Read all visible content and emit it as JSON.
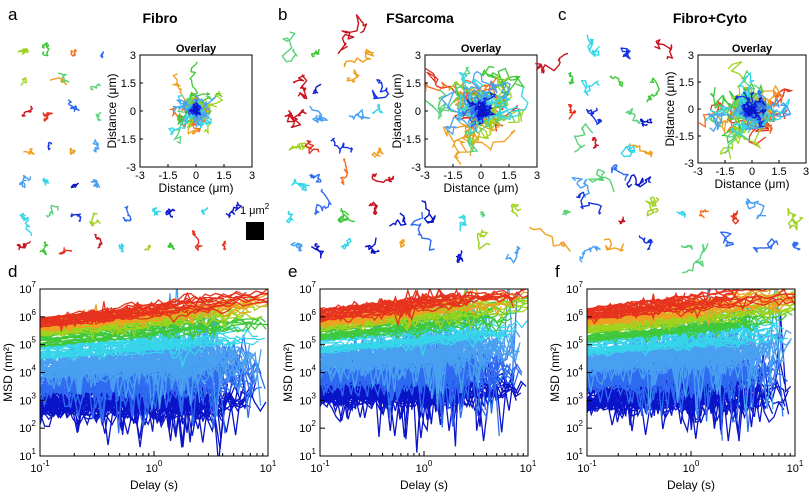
{
  "scale_bar": {
    "label_main": "1 μm",
    "label_exp": "2"
  },
  "palette": [
    "#0a14c8",
    "#1432e6",
    "#2f6bf0",
    "#4aa0f0",
    "#36d6ea",
    "#5ad27a",
    "#3fc83a",
    "#a0d21e",
    "#f0a020",
    "#f07020",
    "#e6321e",
    "#c8141e"
  ],
  "panels": [
    {
      "letter": "a",
      "title": "Fibro",
      "overlay": {
        "title": "Overlay",
        "xlabel": "Distance (μm)",
        "ylabel": "Distance (μm)",
        "xticks": [
          "-3",
          "-1.5",
          "0",
          "1.5",
          "3"
        ],
        "yticks": [
          "3",
          "1.5",
          "0",
          "-1.5",
          "-3"
        ],
        "range": [
          -3,
          3
        ],
        "spread": 1.3
      },
      "tracks_spread": 1.0
    },
    {
      "letter": "b",
      "title": "FSarcoma",
      "overlay": {
        "title": "Overlay",
        "xlabel": "Distance (μm)",
        "ylabel": "Distance (μm)",
        "xticks": [
          "-3",
          "-1.5",
          "0",
          "1.5",
          "3"
        ],
        "yticks": [
          "3",
          "1.5",
          "0",
          "-1.5",
          "-3"
        ],
        "range": [
          -3,
          3
        ],
        "spread": 2.6
      },
      "tracks_spread": 1.8
    },
    {
      "letter": "c",
      "title": "Fibro+Cyto",
      "overlay": {
        "title": "Overlay",
        "xlabel": "Distance (μm)",
        "ylabel": "Distance (μm)",
        "xticks": [
          "-3",
          "-1.5",
          "0",
          "1.5",
          "3"
        ],
        "yticks": [
          "3",
          "1.5",
          "0",
          "-1.5",
          "-3"
        ],
        "range": [
          -3,
          3
        ],
        "spread": 2.5
      },
      "tracks_spread": 1.7
    }
  ],
  "chart_data": [
    {
      "type": "line",
      "letter": "d",
      "xlabel": "Delay (s)",
      "ylabel": "MSD (nm²)",
      "xscale": "log",
      "yscale": "log",
      "xlim": [
        0.1,
        10
      ],
      "ylim": [
        10,
        10000000
      ],
      "xticks": [
        {
          "base": "10",
          "exp": "-1"
        },
        {
          "base": "10",
          "exp": "0"
        },
        {
          "base": "10",
          "exp": "1"
        }
      ],
      "yticks": [
        {
          "base": "10",
          "exp": "1"
        },
        {
          "base": "10",
          "exp": "2"
        },
        {
          "base": "10",
          "exp": "3"
        },
        {
          "base": "10",
          "exp": "4"
        },
        {
          "base": "10",
          "exp": "5"
        },
        {
          "base": "10",
          "exp": "6"
        },
        {
          "base": "10",
          "exp": "7"
        }
      ],
      "series_groups": [
        {
          "color": "#0a14c8",
          "msd_at_0.1s": [
            300,
            2000
          ],
          "slope": [
            0.05,
            0.2
          ]
        },
        {
          "color": "#2f6bf0",
          "msd_at_0.1s": [
            2000,
            10000
          ],
          "slope": [
            0.1,
            0.3
          ]
        },
        {
          "color": "#4aa0f0",
          "msd_at_0.1s": [
            8000,
            30000
          ],
          "slope": [
            0.1,
            0.35
          ]
        },
        {
          "color": "#36d6ea",
          "msd_at_0.1s": [
            30000,
            100000
          ],
          "slope": [
            0.2,
            0.4
          ]
        },
        {
          "color": "#3fc83a",
          "msd_at_0.1s": [
            80000,
            300000
          ],
          "slope": [
            0.25,
            0.5
          ]
        },
        {
          "color": "#a0d21e",
          "msd_at_0.1s": [
            200000,
            500000
          ],
          "slope": [
            0.3,
            0.5
          ]
        },
        {
          "color": "#f0a020",
          "msd_at_0.1s": [
            300000,
            700000
          ],
          "slope": [
            0.35,
            0.55
          ]
        },
        {
          "color": "#e6321e",
          "msd_at_0.1s": [
            400000,
            900000
          ],
          "slope": [
            0.35,
            0.55
          ]
        }
      ]
    },
    {
      "type": "line",
      "letter": "e",
      "xlabel": "Delay (s)",
      "ylabel": "MSD (nm²)",
      "xscale": "log",
      "yscale": "log",
      "xlim": [
        0.1,
        10
      ],
      "ylim": [
        10,
        10000000
      ],
      "xticks": [
        {
          "base": "10",
          "exp": "-1"
        },
        {
          "base": "10",
          "exp": "0"
        },
        {
          "base": "10",
          "exp": "1"
        }
      ],
      "yticks": [
        {
          "base": "10",
          "exp": "1"
        },
        {
          "base": "10",
          "exp": "2"
        },
        {
          "base": "10",
          "exp": "3"
        },
        {
          "base": "10",
          "exp": "4"
        },
        {
          "base": "10",
          "exp": "5"
        },
        {
          "base": "10",
          "exp": "6"
        },
        {
          "base": "10",
          "exp": "7"
        }
      ],
      "series_groups": [
        {
          "color": "#0a14c8",
          "msd_at_0.1s": [
            800,
            4000
          ],
          "slope": [
            0.05,
            0.25
          ]
        },
        {
          "color": "#2f6bf0",
          "msd_at_0.1s": [
            4000,
            15000
          ],
          "slope": [
            0.1,
            0.3
          ]
        },
        {
          "color": "#4aa0f0",
          "msd_at_0.1s": [
            15000,
            60000
          ],
          "slope": [
            0.15,
            0.4
          ]
        },
        {
          "color": "#36d6ea",
          "msd_at_0.1s": [
            50000,
            200000
          ],
          "slope": [
            0.2,
            0.45
          ]
        },
        {
          "color": "#3fc83a",
          "msd_at_0.1s": [
            150000,
            500000
          ],
          "slope": [
            0.25,
            0.5
          ]
        },
        {
          "color": "#a0d21e",
          "msd_at_0.1s": [
            300000,
            900000
          ],
          "slope": [
            0.3,
            0.5
          ]
        },
        {
          "color": "#f0a020",
          "msd_at_0.1s": [
            500000,
            1200000
          ],
          "slope": [
            0.3,
            0.5
          ]
        },
        {
          "color": "#e6321e",
          "msd_at_0.1s": [
            700000,
            1800000
          ],
          "slope": [
            0.3,
            0.5
          ]
        }
      ]
    },
    {
      "type": "line",
      "letter": "f",
      "xlabel": "Delay (s)",
      "ylabel": "MSD (nm²)",
      "xscale": "log",
      "yscale": "log",
      "xlim": [
        0.1,
        10
      ],
      "ylim": [
        10,
        10000000
      ],
      "xticks": [
        {
          "base": "10",
          "exp": "-1"
        },
        {
          "base": "10",
          "exp": "0"
        },
        {
          "base": "10",
          "exp": "1"
        }
      ],
      "yticks": [
        {
          "base": "10",
          "exp": "1"
        },
        {
          "base": "10",
          "exp": "2"
        },
        {
          "base": "10",
          "exp": "3"
        },
        {
          "base": "10",
          "exp": "4"
        },
        {
          "base": "10",
          "exp": "5"
        },
        {
          "base": "10",
          "exp": "6"
        },
        {
          "base": "10",
          "exp": "7"
        }
      ],
      "series_groups": [
        {
          "color": "#0a14c8",
          "msd_at_0.1s": [
            500,
            3000
          ],
          "slope": [
            0.05,
            0.25
          ]
        },
        {
          "color": "#2f6bf0",
          "msd_at_0.1s": [
            3000,
            12000
          ],
          "slope": [
            0.1,
            0.3
          ]
        },
        {
          "color": "#4aa0f0",
          "msd_at_0.1s": [
            12000,
            50000
          ],
          "slope": [
            0.15,
            0.4
          ]
        },
        {
          "color": "#36d6ea",
          "msd_at_0.1s": [
            40000,
            150000
          ],
          "slope": [
            0.2,
            0.45
          ]
        },
        {
          "color": "#3fc83a",
          "msd_at_0.1s": [
            120000,
            400000
          ],
          "slope": [
            0.25,
            0.5
          ]
        },
        {
          "color": "#a0d21e",
          "msd_at_0.1s": [
            250000,
            800000
          ],
          "slope": [
            0.3,
            0.5
          ]
        },
        {
          "color": "#f0a020",
          "msd_at_0.1s": [
            500000,
            1200000
          ],
          "slope": [
            0.3,
            0.5
          ]
        },
        {
          "color": "#e6321e",
          "msd_at_0.1s": [
            800000,
            2000000
          ],
          "slope": [
            0.3,
            0.5
          ]
        }
      ]
    }
  ]
}
